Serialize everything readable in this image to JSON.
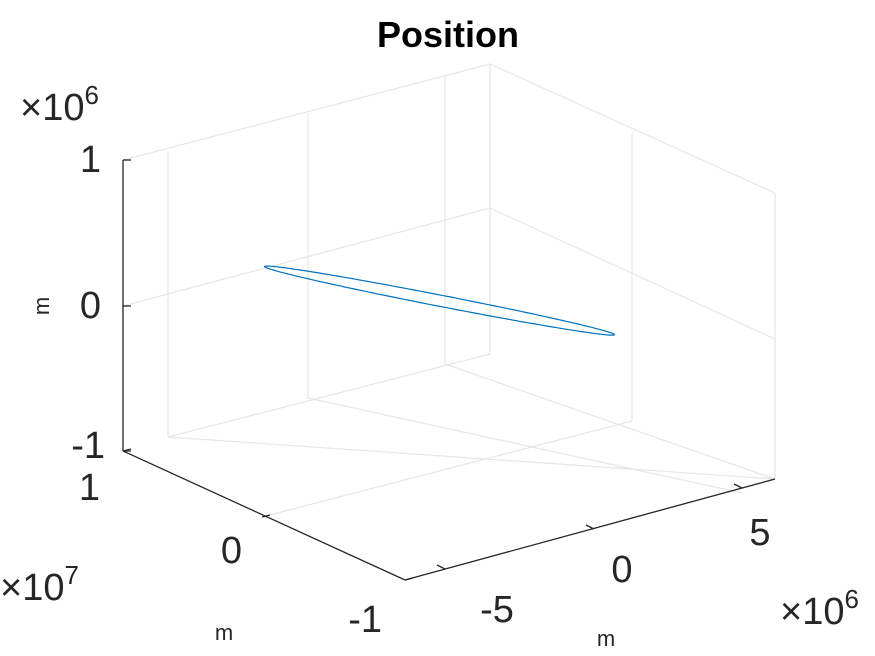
{
  "chart_data": {
    "type": "line",
    "projection": "3d",
    "title": "Position",
    "xlabel": "m",
    "ylabel": "m",
    "zlabel": "m",
    "x_ticks": [
      "-5",
      "0",
      "5"
    ],
    "x_tick_values": [
      -5,
      0,
      5
    ],
    "x_multiplier": {
      "base": "×10",
      "exponent": "6"
    },
    "xlim": [
      -7,
      7
    ],
    "y_ticks": [
      "-1",
      "0",
      "1"
    ],
    "y_tick_values": [
      -1,
      0,
      1
    ],
    "y_multiplier": {
      "base": "×10",
      "exponent": "7"
    },
    "ylim": [
      -1,
      1
    ],
    "z_ticks": [
      "-1",
      "0",
      "1"
    ],
    "z_tick_values": [
      -1,
      0,
      1
    ],
    "z_multiplier": {
      "base": "×10",
      "exponent": "6"
    },
    "zlim": [
      -1,
      1
    ],
    "grid": true,
    "series": [
      {
        "color": "#0072BD",
        "shape": "ellipse",
        "center": [
          0,
          0,
          0
        ],
        "endpoint_a": [
          -6.5,
          0.15,
          0.55
        ],
        "endpoint_b": [
          6.6,
          0.1,
          -0.55
        ],
        "width_ratio": 0.06
      }
    ]
  }
}
